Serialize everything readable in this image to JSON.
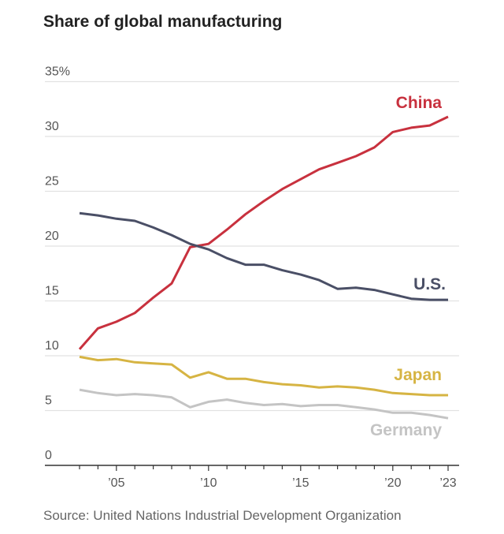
{
  "chart_data": {
    "type": "line",
    "title": "Share of global manufacturing",
    "source": "Source: United Nations Industrial Development Organization",
    "x": [
      2003,
      2004,
      2005,
      2006,
      2007,
      2008,
      2009,
      2010,
      2011,
      2012,
      2013,
      2014,
      2015,
      2016,
      2017,
      2018,
      2019,
      2020,
      2021,
      2022,
      2023
    ],
    "ylim": [
      0,
      35
    ],
    "yticks": [
      {
        "v": 0,
        "label": "0"
      },
      {
        "v": 5,
        "label": "5"
      },
      {
        "v": 10,
        "label": "10"
      },
      {
        "v": 15,
        "label": "15"
      },
      {
        "v": 20,
        "label": "20"
      },
      {
        "v": 25,
        "label": "25"
      },
      {
        "v": 30,
        "label": "30"
      },
      {
        "v": 35,
        "label": "35%"
      }
    ],
    "xticks": [
      {
        "v": 2005,
        "label": "’05"
      },
      {
        "v": 2010,
        "label": "’10"
      },
      {
        "v": 2015,
        "label": "’15"
      },
      {
        "v": 2020,
        "label": "’20"
      },
      {
        "v": 2023,
        "label": "’23"
      }
    ],
    "grid": true,
    "series": [
      {
        "name": "China",
        "color": "#c8313e",
        "values": [
          10.6,
          12.5,
          13.1,
          13.9,
          15.3,
          16.6,
          19.9,
          20.2,
          21.5,
          22.9,
          24.1,
          25.2,
          26.1,
          27.0,
          27.6,
          28.2,
          29.0,
          30.4,
          30.8,
          31.0,
          31.8
        ]
      },
      {
        "name": "U.S.",
        "color": "#4a4f66",
        "values": [
          23.0,
          22.8,
          22.5,
          22.3,
          21.7,
          21.0,
          20.2,
          19.7,
          18.9,
          18.3,
          18.3,
          17.8,
          17.4,
          16.9,
          16.1,
          16.2,
          16.0,
          15.6,
          15.2,
          15.1,
          15.1
        ]
      },
      {
        "name": "Japan",
        "color": "#d6b443",
        "values": [
          9.9,
          9.6,
          9.7,
          9.4,
          9.3,
          9.2,
          8.0,
          8.5,
          7.9,
          7.9,
          7.6,
          7.4,
          7.3,
          7.1,
          7.2,
          7.1,
          6.9,
          6.6,
          6.5,
          6.4,
          6.4
        ]
      },
      {
        "name": "Germany",
        "color": "#c4c4c4",
        "values": [
          6.9,
          6.6,
          6.4,
          6.5,
          6.4,
          6.2,
          5.3,
          5.8,
          6.0,
          5.7,
          5.5,
          5.6,
          5.4,
          5.5,
          5.5,
          5.3,
          5.1,
          4.8,
          4.8,
          4.6,
          4.3
        ]
      }
    ]
  }
}
